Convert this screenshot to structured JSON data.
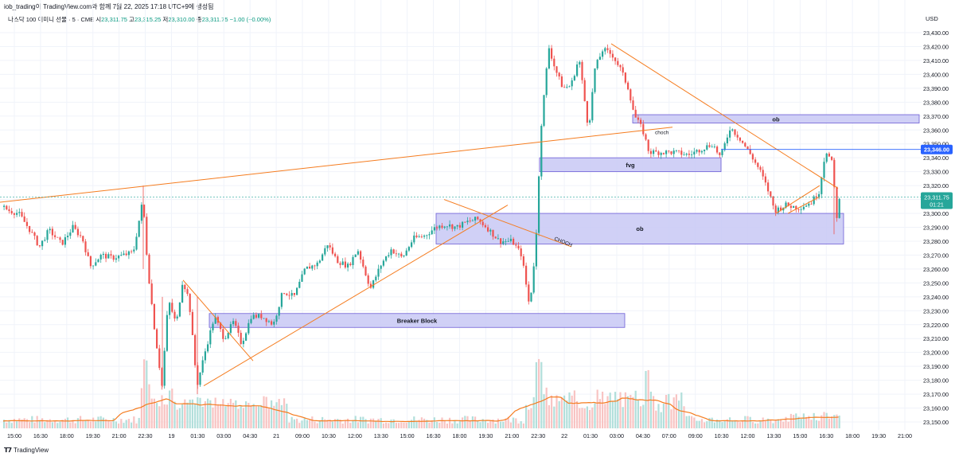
{
  "header": {
    "title": "iob_trading이 TradingView.com와 함께 7월 22, 2025 17:18 UTC+9에 생성됨",
    "symbol": "나스닥 100 이미니 선물 · 5 · CME",
    "o_label": "시",
    "o_value": "23,311.75",
    "h_label": "고",
    "h_value": "23,315.25",
    "l_label": "저",
    "l_value": "23,310.00",
    "c_label": "종",
    "c_value": "23,311.75",
    "change": "−1.00 (−0.00%)"
  },
  "currency": "USD",
  "price_axis": {
    "min": 23150,
    "max": 23430,
    "step": 10,
    "current_price": "23,311.75",
    "countdown": "01:21",
    "level_price": "23,346.00"
  },
  "time_axis": [
    "15:00",
    "16:30",
    "18:00",
    "19:30",
    "21:00",
    "22:30",
    "19",
    "01:30",
    "03:00",
    "04:30",
    "21",
    "09:00",
    "10:30",
    "12:00",
    "13:30",
    "15:00",
    "16:30",
    "18:00",
    "19:30",
    "21:00",
    "22:30",
    "22",
    "01:30",
    "03:00",
    "04:30",
    "07:00",
    "09:00",
    "10:30",
    "12:00",
    "13:30",
    "15:00",
    "16:30",
    "18:00",
    "19:30",
    "21:00"
  ],
  "annotations": {
    "breaker_block": "Breaker Block",
    "ob_lower": "ob",
    "ob_upper": "ob",
    "fvg": "fvg",
    "choch_1": "CHOCH",
    "choch_2": "choch"
  },
  "colors": {
    "up": "#26a69a",
    "down": "#ef5350",
    "zone_fill": "#c8c8f5",
    "zone_border": "#6c5cd6",
    "trendline": "#f57c1f",
    "level_line": "#2962ff",
    "price_line": "#26a69a"
  },
  "chart_data": {
    "type": "candlestick",
    "symbol": "NQ 5m",
    "ylim": [
      23150,
      23430
    ],
    "path": [
      [
        0,
        23306
      ],
      [
        12,
        23302
      ],
      [
        24,
        23300
      ],
      [
        38,
        23288
      ],
      [
        50,
        23276
      ],
      [
        62,
        23288
      ],
      [
        78,
        23278
      ],
      [
        92,
        23290
      ],
      [
        104,
        23282
      ],
      [
        114,
        23262
      ],
      [
        128,
        23270
      ],
      [
        142,
        23268
      ],
      [
        156,
        23270
      ],
      [
        168,
        23272
      ],
      [
        180,
        23310
      ],
      [
        186,
        23262
      ],
      [
        194,
        23220
      ],
      [
        204,
        23176
      ],
      [
        212,
        23238
      ],
      [
        222,
        23220
      ],
      [
        230,
        23252
      ],
      [
        238,
        23238
      ],
      [
        248,
        23176
      ],
      [
        258,
        23200
      ],
      [
        270,
        23226
      ],
      [
        282,
        23210
      ],
      [
        294,
        23222
      ],
      [
        304,
        23206
      ],
      [
        316,
        23226
      ],
      [
        330,
        23226
      ],
      [
        344,
        23220
      ],
      [
        356,
        23244
      ],
      [
        370,
        23240
      ],
      [
        384,
        23260
      ],
      [
        400,
        23264
      ],
      [
        412,
        23278
      ],
      [
        424,
        23266
      ],
      [
        438,
        23262
      ],
      [
        450,
        23274
      ],
      [
        466,
        23246
      ],
      [
        480,
        23264
      ],
      [
        492,
        23274
      ],
      [
        506,
        23268
      ],
      [
        520,
        23282
      ],
      [
        534,
        23284
      ],
      [
        548,
        23290
      ],
      [
        560,
        23292
      ],
      [
        574,
        23290
      ],
      [
        588,
        23294
      ],
      [
        600,
        23296
      ],
      [
        612,
        23290
      ],
      [
        628,
        23280
      ],
      [
        644,
        23280
      ],
      [
        656,
        23270
      ],
      [
        666,
        23232
      ],
      [
        674,
        23280
      ],
      [
        680,
        23360
      ],
      [
        690,
        23420
      ],
      [
        698,
        23404
      ],
      [
        708,
        23390
      ],
      [
        718,
        23392
      ],
      [
        728,
        23412
      ],
      [
        740,
        23360
      ],
      [
        748,
        23404
      ],
      [
        758,
        23418
      ],
      [
        770,
        23414
      ],
      [
        780,
        23404
      ],
      [
        790,
        23390
      ],
      [
        798,
        23370
      ],
      [
        808,
        23360
      ],
      [
        816,
        23344
      ],
      [
        830,
        23344
      ],
      [
        848,
        23344
      ],
      [
        866,
        23342
      ],
      [
        880,
        23346
      ],
      [
        896,
        23350
      ],
      [
        906,
        23340
      ],
      [
        918,
        23362
      ],
      [
        930,
        23354
      ],
      [
        944,
        23342
      ],
      [
        956,
        23330
      ],
      [
        966,
        23316
      ],
      [
        974,
        23302
      ],
      [
        988,
        23306
      ],
      [
        1004,
        23304
      ],
      [
        1020,
        23308
      ],
      [
        1030,
        23316
      ],
      [
        1038,
        23346
      ],
      [
        1046,
        23336
      ],
      [
        1052,
        23298
      ],
      [
        1056,
        23312
      ]
    ],
    "volume_profile_note": "",
    "zones": [
      {
        "label": "Breaker Block",
        "price_top": 23228,
        "price_bottom": 23218
      },
      {
        "label": "ob",
        "price_top": 23300,
        "price_bottom": 23278
      },
      {
        "label": "fvg",
        "price_top": 23340,
        "price_bottom": 23330
      },
      {
        "label": "ob",
        "price_top": 23371,
        "price_bottom": 23365
      }
    ]
  }
}
